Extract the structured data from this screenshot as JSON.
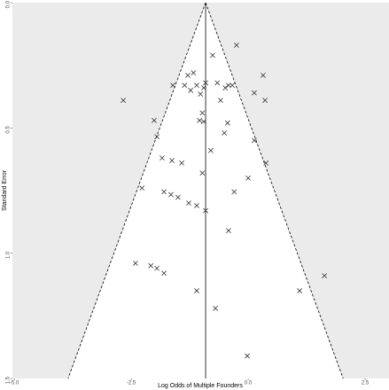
{
  "chart_data": {
    "type": "funnel",
    "x_label": "Log Odds of Multiple Founders",
    "y_label": "Standard Error",
    "summary": -0.91,
    "xlim": [
      -5.04,
      3.01
    ],
    "ylim": [
      0,
      1.5
    ],
    "y_reversed": true,
    "xticks": [
      {
        "value": -5,
        "label": "-5.0"
      },
      {
        "value": -2.5,
        "label": "-2.5"
      },
      {
        "value": 0,
        "label": "0.0"
      },
      {
        "value": 2.5,
        "label": "2.5"
      }
    ],
    "yticks": [
      {
        "value": 0,
        "label": "0.0"
      },
      {
        "value": 0.5,
        "label": "0.5"
      },
      {
        "value": 1,
        "label": "1.0"
      },
      {
        "value": 1.5,
        "label": "1.5"
      }
    ],
    "color": "#333333",
    "x": [
      -0.25,
      -0.76,
      0.32,
      -1.29,
      -1.17,
      -1.61,
      -1.36,
      -1.23,
      -1.1,
      -1.02,
      -0.95,
      -0.91,
      -0.66,
      -0.49,
      -0.42,
      -0.34,
      0.13,
      0.36,
      -0.59,
      -2.67,
      -0.98,
      -1.04,
      -0.95,
      -0.44,
      -2.01,
      -0.51,
      -1.95,
      0.13,
      -0.8,
      -1.84,
      -1.63,
      -1.42,
      0.38,
      0,
      -0.98,
      -2.27,
      -1.8,
      -1.65,
      -1.5,
      -0.3,
      -1.27,
      -1.1,
      -0.91,
      -0.42,
      -2.41,
      -2.08,
      -1.95,
      -1.8,
      1.63,
      1.1,
      -1.1,
      -0.7,
      -0.02
    ],
    "values": [
      0.17,
      0.21,
      0.29,
      0.29,
      0.28,
      0.33,
      0.33,
      0.35,
      0.33,
      0.365,
      0.34,
      0.32,
      0.32,
      0.34,
      0.33,
      0.33,
      0.36,
      0.39,
      0.39,
      0.39,
      0.44,
      0.47,
      0.475,
      0.48,
      0.47,
      0.52,
      0.535,
      0.55,
      0.59,
      0.62,
      0.63,
      0.64,
      0.64,
      0.7,
      0.68,
      0.74,
      0.755,
      0.766,
      0.777,
      0.755,
      0.8,
      0.81,
      0.83,
      0.91,
      1.04,
      1.05,
      1.06,
      1.08,
      1.09,
      1.15,
      1.15,
      1.22,
      1.41
    ]
  }
}
